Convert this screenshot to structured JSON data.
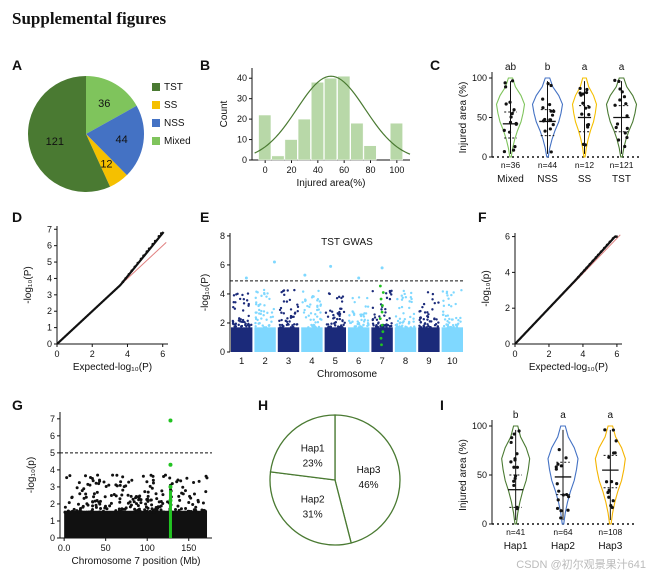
{
  "title": "Supplemental figures",
  "watermark": "CSDN @初尔观景果汁641",
  "colors": {
    "TST": "#4a7a32",
    "SS": "#f5c000",
    "NSS": "#4472c4",
    "Mixed": "#7fc45c",
    "gwas_dark": "#1b2a7a",
    "gwas_light": "#7fd8ff",
    "highlight": "#22c322",
    "threshold": "#000000",
    "qq_line": "#e08080",
    "hist_fill": "#b8d8a8",
    "curve": "#4a7a32"
  },
  "panels": {
    "A": {
      "label": "A"
    },
    "B": {
      "label": "B"
    },
    "C": {
      "label": "C"
    },
    "D": {
      "label": "D"
    },
    "E": {
      "label": "E"
    },
    "F": {
      "label": "F"
    },
    "G": {
      "label": "G"
    },
    "H": {
      "label": "H"
    },
    "I": {
      "label": "I"
    }
  },
  "chart_data": [
    {
      "panel": "A",
      "type": "pie",
      "categories": [
        "TST",
        "SS",
        "NSS",
        "Mixed"
      ],
      "values": [
        121,
        12,
        44,
        36
      ],
      "legend": [
        "TST",
        "SS",
        "NSS",
        "Mixed"
      ]
    },
    {
      "panel": "B",
      "type": "bar",
      "x": [
        0,
        10,
        20,
        30,
        40,
        50,
        60,
        70,
        80,
        90,
        100,
        110
      ],
      "values": [
        22,
        2,
        10,
        20,
        38,
        40,
        41,
        18,
        7,
        0,
        18,
        0
      ],
      "xticks": [
        "0",
        "20",
        "40",
        "60",
        "80",
        "100"
      ],
      "yticks": [
        "0",
        "10",
        "20",
        "30",
        "40"
      ],
      "xlabel": "Injured area(%)",
      "ylabel": "Count",
      "ylim": [
        0,
        45
      ],
      "normal_fit": {
        "mean": 50,
        "sd": 26
      }
    },
    {
      "panel": "C",
      "type": "violin",
      "categories": [
        "Mixed",
        "NSS",
        "SS",
        "TST"
      ],
      "letters": [
        "ab",
        "b",
        "a",
        "a"
      ],
      "n_labels": [
        "n=36",
        "n=44",
        "n=12",
        "n=121"
      ],
      "medians": [
        42,
        45,
        50,
        50
      ],
      "ylabel": "Injured area (%)",
      "yticks": [
        "0",
        "50",
        "100"
      ],
      "ylim": [
        0,
        100
      ]
    },
    {
      "panel": "D",
      "type": "scatter",
      "subtype": "qq",
      "xlabel": "Expected-log₁₀(P)",
      "ylabel": "-log₁₀(P)",
      "xticks": [
        "0",
        "2",
        "4",
        "6"
      ],
      "yticks": [
        "0",
        "1",
        "2",
        "3",
        "4",
        "5",
        "6",
        "7"
      ],
      "xlim": [
        0,
        6.3
      ],
      "ylim": [
        0,
        7.2
      ]
    },
    {
      "panel": "E",
      "type": "scatter",
      "subtype": "manhattan",
      "title": "TST GWAS",
      "chromosomes": [
        "1",
        "2",
        "3",
        "4",
        "5",
        "6",
        "7",
        "8",
        "9",
        "10"
      ],
      "xlabel": "Chromosome",
      "ylabel": "-log₁₀(P)",
      "yticks": [
        "0",
        "2",
        "4",
        "6",
        "8"
      ],
      "ylim": [
        0,
        8.2
      ],
      "threshold": 4.9
    },
    {
      "panel": "F",
      "type": "scatter",
      "subtype": "qq",
      "xlabel": "Expected-log₁₀(P)",
      "ylabel": "-log₁₀(p)",
      "xticks": [
        "0",
        "2",
        "4",
        "6"
      ],
      "yticks": [
        "0",
        "2",
        "4",
        "6"
      ],
      "xlim": [
        0,
        6.3
      ],
      "ylim": [
        0,
        6.2
      ]
    },
    {
      "panel": "G",
      "type": "scatter",
      "subtype": "manhattan",
      "xlabel": "Chromosome 7 position (Mb)",
      "ylabel": "-log₁₀(p)",
      "xticks": [
        "0.0",
        "50",
        "100",
        "150"
      ],
      "yticks": [
        "0",
        "1",
        "2",
        "3",
        "4",
        "5",
        "6",
        "7"
      ],
      "xlim": [
        -5,
        178
      ],
      "ylim": [
        0,
        7.4
      ],
      "threshold": 5,
      "highlight_position": 128
    },
    {
      "panel": "H",
      "type": "pie",
      "categories": [
        "Hap1",
        "Hap2",
        "Hap3"
      ],
      "values": [
        23,
        31,
        46
      ],
      "labels": [
        "23%",
        "31%",
        "46%"
      ]
    },
    {
      "panel": "I",
      "type": "violin",
      "categories": [
        "Hap1",
        "Hap2",
        "Hap3"
      ],
      "letters": [
        "b",
        "a",
        "a"
      ],
      "n_labels": [
        "n=41",
        "n=64",
        "n=108"
      ],
      "medians": [
        35,
        48,
        55
      ],
      "ylabel": "Injured area (%)",
      "yticks": [
        "0",
        "50",
        "100"
      ],
      "ylim": [
        0,
        100
      ]
    }
  ]
}
